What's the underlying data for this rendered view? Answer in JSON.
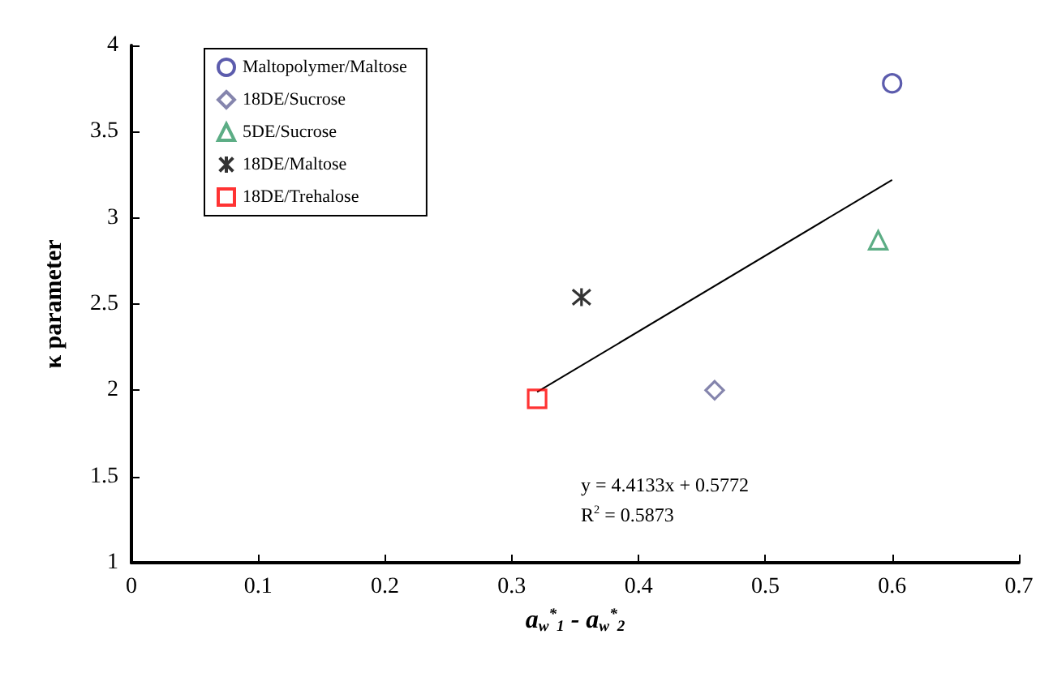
{
  "chart_data": {
    "type": "scatter",
    "xlabel": "a$_{w}$$^{*}$$_{1}$ - a$_{w}$$^{*}$$_{2}$",
    "ylabel": "κ parameter",
    "xlim": [
      0,
      0.7
    ],
    "xticks": [
      0,
      0.1,
      0.2,
      0.3,
      0.4,
      0.5,
      0.6,
      0.7
    ],
    "ylim": [
      1,
      4
    ],
    "yticks": [
      1,
      1.5,
      2,
      2.5,
      3,
      3.5,
      4
    ],
    "grid": false,
    "legend": "top left",
    "series": [
      {
        "name": "Maltopolymer/Maltose",
        "color": "#333399",
        "marker": "circle",
        "x": [
          0.6
        ],
        "values": [
          3.78
        ]
      },
      {
        "name": "18DE/Sucrose",
        "color": "#666699",
        "marker": "diamond",
        "x": [
          0.46
        ],
        "values": [
          2.0
        ]
      },
      {
        "name": "5DE/Sucrose",
        "color": "#339966",
        "marker": "triangle",
        "x": [
          0.589
        ],
        "values": [
          2.87
        ]
      },
      {
        "name": "18DE/Maltose",
        "color": "#000000",
        "marker": "cross",
        "x": [
          0.355
        ],
        "values": [
          2.54
        ]
      },
      {
        "name": "18DE/Trehalose",
        "color": "#ff0000",
        "marker": "square",
        "x": [
          0.32
        ],
        "values": [
          1.95
        ]
      },
      {
        "type": "line",
        "color": "#000000",
        "marker": "none",
        "x": [
          0.32,
          0.6
        ],
        "values": [
          1.99,
          3.22
        ]
      }
    ],
    "annotations": [
      "y = 4.4133x + 0.5772",
      "R$^{2}$ = 0.5873"
    ]
  }
}
